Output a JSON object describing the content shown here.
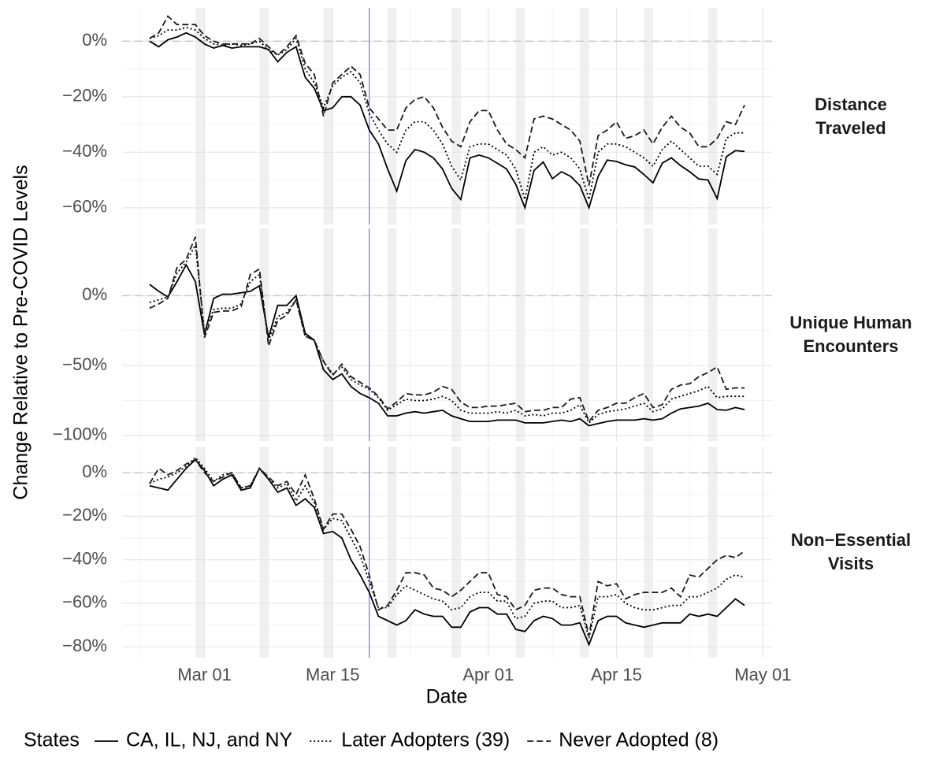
{
  "chart_data": {
    "type": "line",
    "y_title": "Change Relative to Pre-COVID Levels",
    "x_title": "Date",
    "x": [
      "Feb 24",
      "Feb 25",
      "Feb 26",
      "Feb 27",
      "Feb 28",
      "Feb 29",
      "Mar 01",
      "Mar 02",
      "Mar 03",
      "Mar 04",
      "Mar 05",
      "Mar 06",
      "Mar 07",
      "Mar 08",
      "Mar 09",
      "Mar 10",
      "Mar 11",
      "Mar 12",
      "Mar 13",
      "Mar 14",
      "Mar 15",
      "Mar 16",
      "Mar 17",
      "Mar 18",
      "Mar 19",
      "Mar 20",
      "Mar 21",
      "Mar 22",
      "Mar 23",
      "Mar 24",
      "Mar 25",
      "Mar 26",
      "Mar 27",
      "Mar 28",
      "Mar 29",
      "Mar 30",
      "Mar 31",
      "Apr 01",
      "Apr 02",
      "Apr 03",
      "Apr 04",
      "Apr 05",
      "Apr 06",
      "Apr 07",
      "Apr 08",
      "Apr 09",
      "Apr 10",
      "Apr 11",
      "Apr 12",
      "Apr 13",
      "Apr 14",
      "Apr 15",
      "Apr 16",
      "Apr 17",
      "Apr 18",
      "Apr 19",
      "Apr 20",
      "Apr 21",
      "Apr 22",
      "Apr 23",
      "Apr 24",
      "Apr 25",
      "Apr 26",
      "Apr 27",
      "Apr 28",
      "Apr 29"
    ],
    "xlim": [
      "Feb 21",
      "May 02"
    ],
    "xticks": [
      "Mar 01",
      "Mar 15",
      "Apr 01",
      "Apr 15",
      "May 01"
    ],
    "shaded_dates": [
      "Feb 29",
      "Mar 07",
      "Mar 14",
      "Mar 21",
      "Mar 28",
      "Apr 04",
      "Apr 11",
      "Apr 18",
      "Apr 25"
    ],
    "vline": "Mar 19",
    "grid": true,
    "legend": {
      "title": "States",
      "position": "bottom"
    },
    "series": [
      {
        "name": "CA, IL, NJ, and NY",
        "color": "#000000",
        "linestyle": "solid"
      },
      {
        "name": "Later Adopters (39)",
        "color": "#000000",
        "linestyle": "dotted"
      },
      {
        "name": "Never Adopted (8)",
        "color": "#1a1a1a",
        "linestyle": "dashed"
      }
    ],
    "facets": [
      {
        "label": "Distance Traveled",
        "ylim": [
          -66,
          12
        ],
        "hline": 0,
        "yticks": [
          {
            "value": 0,
            "label": "0%"
          },
          {
            "value": -20,
            "label": "−20%"
          },
          {
            "value": -40,
            "label": "−40%"
          },
          {
            "value": -60,
            "label": "−60%"
          }
        ],
        "series": [
          {
            "values": [
              0,
              -2,
              0.5,
              1.5,
              3,
              1.5,
              -1,
              -2.5,
              -1.5,
              -2.5,
              -2,
              -2,
              -2,
              -3,
              -7.4,
              -4,
              -2,
              -13,
              -17,
              -25,
              -24,
              -20,
              -20,
              -23,
              -32,
              -37,
              -46,
              -54,
              -43,
              -39,
              -40,
              -42,
              -46,
              -53,
              -57,
              -42,
              -41,
              -42,
              -44,
              -46,
              -51.5,
              -60,
              -46.5,
              -43.5,
              -49.5,
              -47,
              -48.7,
              -52,
              -60,
              -48.7,
              -42.8,
              -43.3,
              -44.5,
              -45.3,
              -48,
              -51,
              -43.9,
              -42,
              -44.8,
              -47,
              -49.6,
              -50,
              -56.7,
              -41.6,
              -39.4,
              -39.7
            ]
          },
          {
            "values": [
              1,
              2,
              4,
              4,
              5,
              4,
              1,
              -1,
              -1.5,
              -1,
              -1.5,
              -1,
              0,
              -3,
              -5,
              -3,
              1,
              -10,
              -15,
              -24,
              -16,
              -13,
              -11,
              -15,
              -26,
              -32,
              -37,
              -40,
              -32,
              -29,
              -29,
              -32,
              -37,
              -45,
              -50,
              -38,
              -37,
              -37,
              -39,
              -41,
              -46,
              -57,
              -40,
              -38,
              -41,
              -40,
              -42,
              -46,
              -57,
              -40,
              -37,
              -37,
              -38,
              -40,
              -42,
              -45,
              -39,
              -36,
              -39,
              -42,
              -45,
              -45,
              -48,
              -35,
              -33,
              -33
            ]
          },
          {
            "values": [
              1,
              3,
              9,
              6,
              6,
              6,
              2,
              0,
              -1,
              -1,
              -1,
              -1,
              1,
              -2,
              -5,
              -2,
              2,
              -8,
              -12,
              -27,
              -15,
              -12,
              -9,
              -12,
              -24,
              -28,
              -32,
              -32,
              -24,
              -21,
              -20,
              -24,
              -31,
              -36,
              -38,
              -29,
              -25,
              -25,
              -32,
              -37,
              -39,
              -42,
              -28,
              -27,
              -28,
              -30,
              -32,
              -36,
              -52,
              -34,
              -32,
              -29,
              -35,
              -34,
              -32,
              -37,
              -31,
              -27,
              -31,
              -33,
              -38,
              -38,
              -35,
              -29,
              -30,
              -23
            ]
          }
        ]
      },
      {
        "label": "Unique Human Encounters",
        "ylim": [
          -104,
          48
        ],
        "hline": 0,
        "yticks": [
          {
            "value": 0,
            "label": "0%"
          },
          {
            "value": -50,
            "label": "−50%"
          },
          {
            "value": -100,
            "label": "−100%"
          }
        ],
        "series": [
          {
            "values": [
              8,
              3,
              -1,
              10,
              22,
              10,
              -28,
              -2,
              1,
              1,
              2,
              3,
              7,
              -30,
              -7,
              -7,
              0,
              -27,
              -32,
              -53,
              -60,
              -56,
              -65,
              -70,
              -73,
              -77,
              -86,
              -86,
              -84,
              -83,
              -84,
              -83,
              -82,
              -86,
              -88,
              -90,
              -90,
              -90,
              -89,
              -89,
              -89,
              -91,
              -91,
              -91,
              -90,
              -89,
              -90,
              -88,
              -93,
              -91.5,
              -90,
              -89,
              -89,
              -89,
              -88,
              -89,
              -88,
              -84,
              -81,
              -80,
              -79,
              -77,
              -81.5,
              -82,
              -80,
              -81.5
            ]
          },
          {
            "values": [
              -5,
              -3,
              -1,
              16,
              24,
              36,
              -26,
              -10,
              -9,
              -9,
              -6,
              10,
              15,
              -32,
              -15,
              -12,
              -3,
              -29,
              -32,
              -47,
              -56,
              -51,
              -60,
              -64,
              -67,
              -73,
              -82,
              -78,
              -74,
              -75,
              -75,
              -74,
              -72,
              -75,
              -82,
              -84,
              -84,
              -84,
              -83,
              -84,
              -82,
              -86,
              -85,
              -86,
              -84,
              -84,
              -82,
              -78,
              -91,
              -85,
              -83,
              -82,
              -81,
              -79,
              -77,
              -83,
              -81,
              -74,
              -72,
              -70,
              -68,
              -65,
              -73,
              -72,
              -72,
              -72
            ]
          },
          {
            "values": [
              -9,
              -6,
              -2,
              20,
              26,
              42,
              -30,
              -12,
              -11,
              -11,
              -8,
              15,
              19,
              -36,
              -18,
              -14,
              -3,
              -29,
              -32,
              -47,
              -57,
              -49,
              -58,
              -62,
              -66,
              -72,
              -81,
              -76,
              -70,
              -71,
              -71,
              -69,
              -65,
              -67,
              -76,
              -80,
              -80,
              -79,
              -79,
              -78,
              -77,
              -83,
              -82,
              -82,
              -80,
              -80,
              -74,
              -73,
              -90,
              -82,
              -80,
              -77,
              -77,
              -73,
              -70,
              -80,
              -78,
              -67,
              -64,
              -63,
              -58,
              -55,
              -51,
              -67,
              -66,
              -66
            ]
          }
        ]
      },
      {
        "label": "Non−Essential Visits",
        "ylim": [
          -85,
          12
        ],
        "hline": 0,
        "yticks": [
          {
            "value": 0,
            "label": "0%"
          },
          {
            "value": -20,
            "label": "−20%"
          },
          {
            "value": -40,
            "label": "−40%"
          },
          {
            "value": -60,
            "label": "−60%"
          },
          {
            "value": -80,
            "label": "−80%"
          }
        ],
        "series": [
          {
            "values": [
              -6,
              -7,
              -8,
              -3,
              2,
              6,
              1,
              -6,
              -3,
              -1,
              -8,
              -7,
              2,
              -3,
              -9,
              -7,
              -15,
              -12,
              -16,
              -28,
              -27,
              -30,
              -40,
              -47,
              -55,
              -66,
              -68,
              -70,
              -68,
              -63,
              -65,
              -66,
              -66,
              -71,
              -71,
              -64,
              -62,
              -62,
              -65,
              -65,
              -72,
              -73,
              -68,
              -66,
              -67,
              -70,
              -70,
              -69,
              -79,
              -68,
              -66,
              -66,
              -69,
              -70,
              -71,
              -70,
              -69,
              -69,
              -69,
              -65,
              -66,
              -65,
              -66,
              -62,
              -58,
              -61
            ]
          },
          {
            "values": [
              -5,
              -3,
              -2,
              0,
              3,
              7,
              2,
              -4,
              -1,
              0,
              -7,
              -6,
              2,
              -3,
              -7,
              -5,
              -13,
              -6,
              -14,
              -26,
              -21,
              -22,
              -30,
              -38,
              -50,
              -62,
              -62,
              -56,
              -52,
              -54,
              -56,
              -58,
              -59,
              -63,
              -62,
              -57,
              -55,
              -55,
              -59,
              -59,
              -67,
              -66,
              -60,
              -59,
              -59,
              -62,
              -62,
              -61,
              -76,
              -57,
              -57,
              -56,
              -60,
              -62,
              -63,
              -63,
              -62,
              -61,
              -61,
              -57,
              -57,
              -55,
              -53,
              -49,
              -47,
              -48
            ]
          },
          {
            "values": [
              -5,
              2,
              -1,
              1,
              4,
              6,
              0,
              -4,
              -2,
              0,
              -7,
              -6,
              2,
              -2,
              -6,
              -4,
              -10,
              -1,
              -12,
              -26,
              -19,
              -19,
              -26,
              -34,
              -47,
              -63,
              -61,
              -54,
              -46,
              -46,
              -47,
              -53,
              -54,
              -57,
              -54,
              -50,
              -46,
              -46,
              -56,
              -57,
              -63,
              -61,
              -54,
              -53,
              -53,
              -56,
              -57,
              -57,
              -75,
              -50,
              -52,
              -51,
              -58,
              -56,
              -55,
              -55,
              -55,
              -53,
              -57,
              -47,
              -48,
              -44,
              -40,
              -38,
              -39,
              -36
            ]
          }
        ]
      }
    ]
  }
}
